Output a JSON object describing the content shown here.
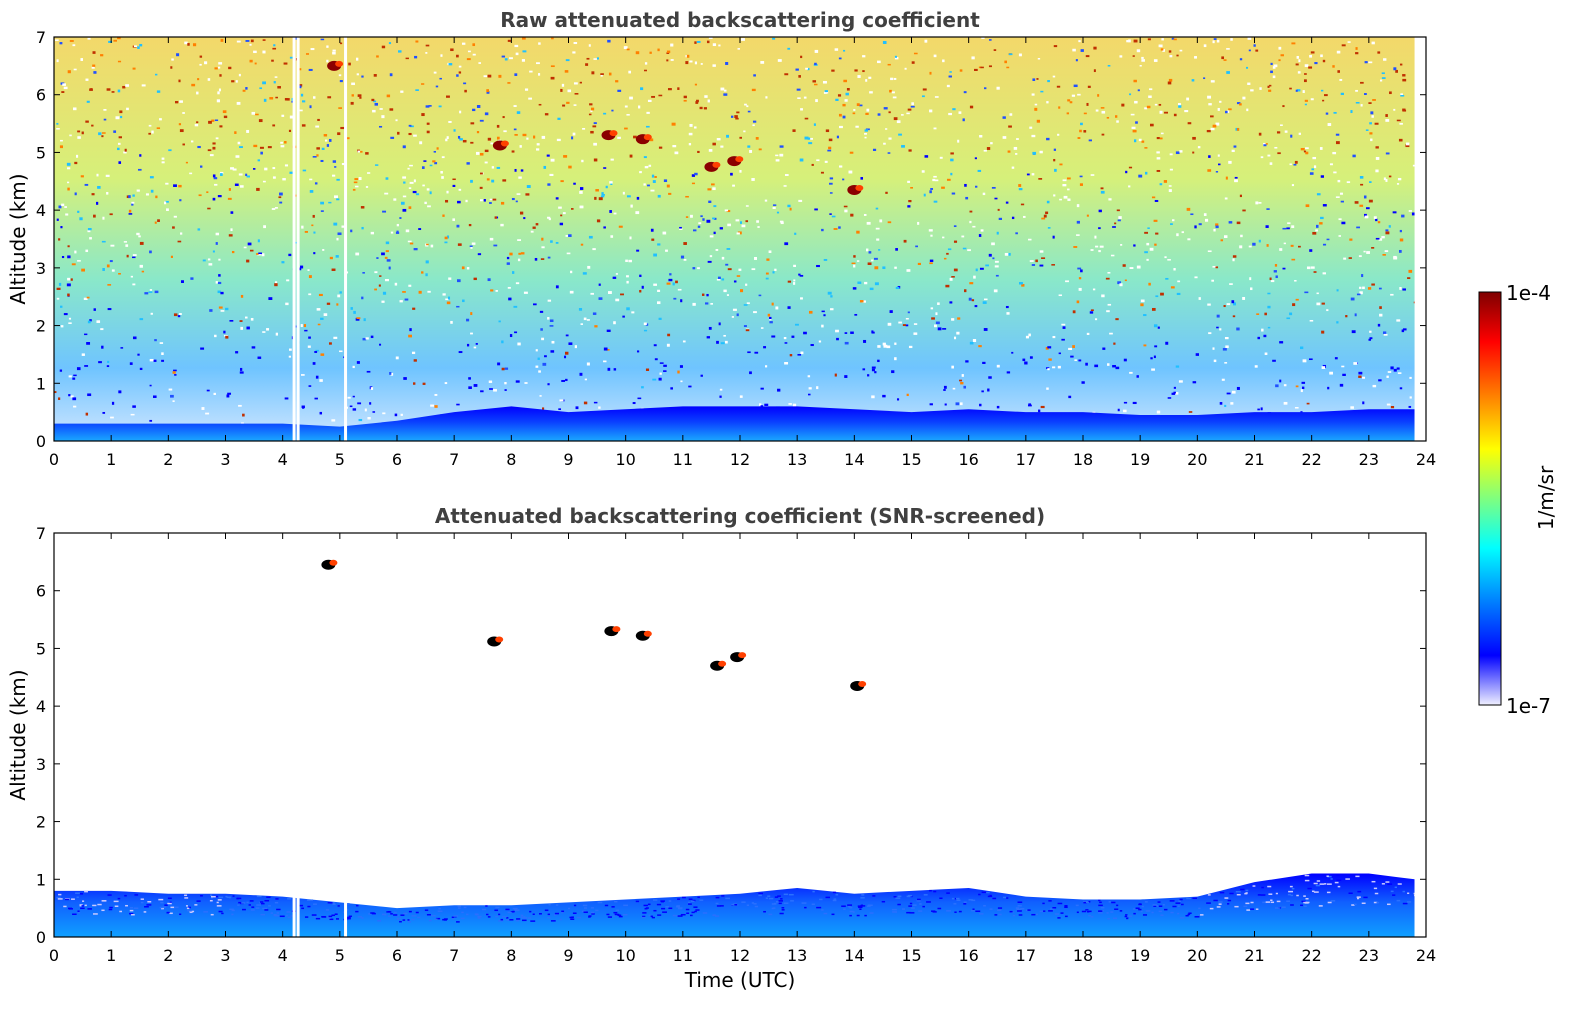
{
  "chart_data": [
    {
      "type": "heatmap",
      "title": "Raw attenuated backscattering coefficient",
      "xlabel": "",
      "ylabel": "Altitude (km)",
      "xlim": [
        0,
        24
      ],
      "ylim": [
        0,
        7
      ],
      "x_ticks": [
        "0",
        "1",
        "2",
        "3",
        "4",
        "5",
        "6",
        "7",
        "8",
        "9",
        "10",
        "11",
        "12",
        "13",
        "14",
        "15",
        "16",
        "17",
        "18",
        "19",
        "20",
        "21",
        "22",
        "23",
        "24"
      ],
      "y_ticks": [
        "0",
        "1",
        "2",
        "3",
        "4",
        "5",
        "6",
        "7"
      ],
      "data_end_hour": 23.8,
      "data_gaps_hours": [
        4.2,
        4.27,
        5.1
      ],
      "boundary_layer_top_km": [
        [
          0,
          0.3
        ],
        [
          2,
          0.3
        ],
        [
          4,
          0.3
        ],
        [
          5,
          0.25
        ],
        [
          6,
          0.35
        ],
        [
          7,
          0.5
        ],
        [
          8,
          0.6
        ],
        [
          9,
          0.5
        ],
        [
          10,
          0.55
        ],
        [
          11,
          0.6
        ],
        [
          13,
          0.6
        ],
        [
          15,
          0.5
        ],
        [
          16,
          0.55
        ],
        [
          17,
          0.5
        ],
        [
          18,
          0.5
        ],
        [
          19,
          0.45
        ],
        [
          20,
          0.45
        ],
        [
          21,
          0.5
        ],
        [
          22,
          0.5
        ],
        [
          23,
          0.55
        ],
        [
          23.8,
          0.55
        ]
      ],
      "cloud_features": [
        {
          "time_h": 4.9,
          "alt_km": 6.5
        },
        {
          "time_h": 7.8,
          "alt_km": 5.12
        },
        {
          "time_h": 9.7,
          "alt_km": 5.3
        },
        {
          "time_h": 10.3,
          "alt_km": 5.23
        },
        {
          "time_h": 11.5,
          "alt_km": 4.75
        },
        {
          "time_h": 11.9,
          "alt_km": 4.85
        },
        {
          "time_h": 14.0,
          "alt_km": 4.35
        }
      ]
    },
    {
      "type": "heatmap",
      "title": "Attenuated backscattering coefficient (SNR-screened)",
      "xlabel": "Time (UTC)",
      "ylabel": "Altitude (km)",
      "xlim": [
        0,
        24
      ],
      "ylim": [
        0,
        7
      ],
      "x_ticks": [
        "0",
        "1",
        "2",
        "3",
        "4",
        "5",
        "6",
        "7",
        "8",
        "9",
        "10",
        "11",
        "12",
        "13",
        "14",
        "15",
        "16",
        "17",
        "18",
        "19",
        "20",
        "21",
        "22",
        "23",
        "24"
      ],
      "y_ticks": [
        "0",
        "1",
        "2",
        "3",
        "4",
        "5",
        "6",
        "7"
      ],
      "data_end_hour": 23.8,
      "boundary_layer_top_km": [
        [
          0,
          0.8
        ],
        [
          1,
          0.8
        ],
        [
          2,
          0.75
        ],
        [
          3,
          0.75
        ],
        [
          4,
          0.7
        ],
        [
          5,
          0.6
        ],
        [
          6,
          0.5
        ],
        [
          7,
          0.55
        ],
        [
          8,
          0.55
        ],
        [
          9,
          0.6
        ],
        [
          10,
          0.65
        ],
        [
          11,
          0.7
        ],
        [
          12,
          0.75
        ],
        [
          13,
          0.85
        ],
        [
          14,
          0.75
        ],
        [
          15,
          0.8
        ],
        [
          16,
          0.85
        ],
        [
          17,
          0.7
        ],
        [
          18,
          0.65
        ],
        [
          19,
          0.65
        ],
        [
          20,
          0.7
        ],
        [
          21,
          0.95
        ],
        [
          22,
          1.1
        ],
        [
          23,
          1.1
        ],
        [
          23.8,
          1.0
        ]
      ],
      "cloud_features": [
        {
          "time_h": 4.8,
          "alt_km": 6.45
        },
        {
          "time_h": 7.7,
          "alt_km": 5.12
        },
        {
          "time_h": 9.75,
          "alt_km": 5.3
        },
        {
          "time_h": 10.3,
          "alt_km": 5.22
        },
        {
          "time_h": 11.6,
          "alt_km": 4.7
        },
        {
          "time_h": 11.95,
          "alt_km": 4.85
        },
        {
          "time_h": 14.05,
          "alt_km": 4.35
        }
      ]
    }
  ],
  "colorbar": {
    "label": "1/m/sr",
    "max_label": "1e-4",
    "min_label": "1e-7",
    "colors": [
      "#7f0000",
      "#ff0000",
      "#ff7f00",
      "#ffff00",
      "#7fff7f",
      "#00ffff",
      "#007fff",
      "#0000ff",
      "#f0f0ff"
    ]
  }
}
